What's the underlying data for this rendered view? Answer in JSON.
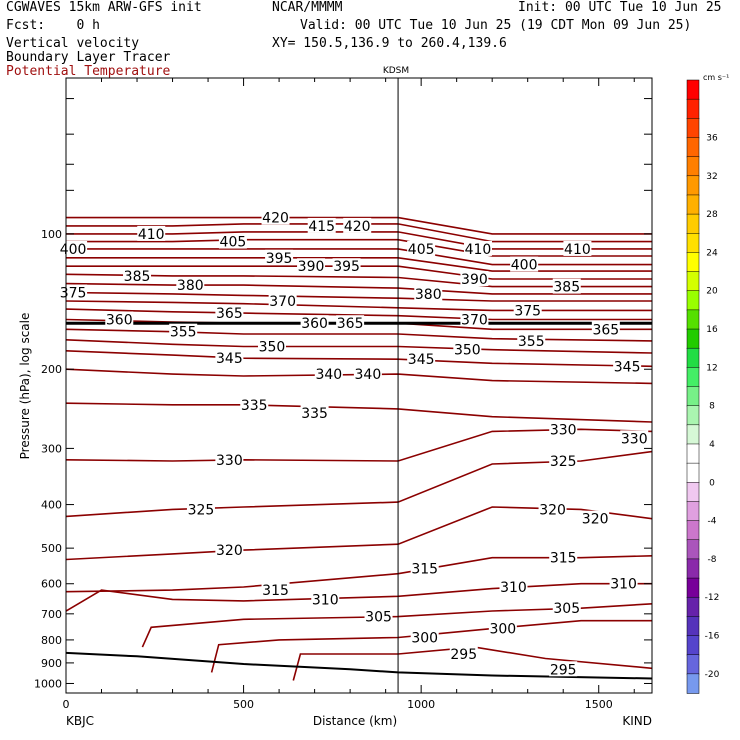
{
  "header": {
    "model": "CGWAVES 15km ARW-GFS init",
    "org": "NCAR/MMMM",
    "init": "Init: 00 UTC Tue 10 Jun 25",
    "fcst": "Fcst:    0 h",
    "valid": "Valid: 00 UTC Tue 10 Jun 25 (19 CDT Mon 09 Jun 25)",
    "field1": "Vertical velocity",
    "xy": "XY= 150.5,136.9 to 260.4,139.6",
    "field2": "Boundary Layer Tracer",
    "field3": "Potential Temperature"
  },
  "chart_data": {
    "type": "cross-section contour",
    "xlabel": "Distance (km)",
    "ylabel": "Pressure (hPa), log scale",
    "xlim": [
      0,
      1650
    ],
    "ylim": [
      1050,
      45
    ],
    "x_ticks": [
      0,
      500,
      1000,
      1500
    ],
    "y_ticks": [
      100,
      200,
      300,
      400,
      500,
      600,
      700,
      800,
      900,
      1000
    ],
    "left_station": "KBJC",
    "right_station": "KIND",
    "mid_station": "KDSM",
    "mid_station_x": 935,
    "colorbar": {
      "unit": "cm s⁻¹",
      "labels": [
        36,
        32,
        28,
        24,
        20,
        16,
        12,
        8,
        4,
        0,
        -4,
        -8,
        -12,
        -16,
        -20
      ],
      "colors": [
        "#ff0000",
        "#ff2200",
        "#ff4400",
        "#ff6600",
        "#ff7f00",
        "#ff9900",
        "#ffb000",
        "#ffcc00",
        "#ffe000",
        "#ffff00",
        "#d4ff00",
        "#99ff00",
        "#55e000",
        "#22cc00",
        "#22dd44",
        "#44ee66",
        "#77f088",
        "#aaf5b0",
        "#d6f8d6",
        "#ffffff",
        "#ffffff",
        "#f0c8f0",
        "#e0a0e0",
        "#cc77cc",
        "#aa55bb",
        "#8a2aaa",
        "#770099",
        "#6622aa",
        "#5533bb",
        "#5544cc",
        "#6666dd",
        "#7799ee"
      ]
    },
    "series": [
      {
        "theta": 420,
        "points": [
          [
            0,
            92
          ],
          [
            300,
            92
          ],
          [
            500,
            92
          ],
          [
            935,
            92
          ],
          [
            1200,
            100
          ],
          [
            1650,
            100
          ]
        ]
      },
      {
        "theta": 415,
        "points": [
          [
            0,
            96
          ],
          [
            300,
            96
          ],
          [
            500,
            95
          ],
          [
            935,
            95
          ],
          [
            1200,
            104
          ],
          [
            1650,
            104
          ]
        ]
      },
      {
        "theta": 410,
        "points": [
          [
            0,
            100
          ],
          [
            300,
            100
          ],
          [
            500,
            99
          ],
          [
            935,
            99
          ],
          [
            1200,
            108
          ],
          [
            1650,
            108
          ]
        ]
      },
      {
        "theta": 405,
        "points": [
          [
            0,
            104
          ],
          [
            300,
            104
          ],
          [
            500,
            103
          ],
          [
            935,
            103
          ],
          [
            1200,
            112
          ],
          [
            1650,
            112
          ]
        ]
      },
      {
        "theta": 400,
        "points": [
          [
            0,
            108
          ],
          [
            300,
            108
          ],
          [
            500,
            108
          ],
          [
            935,
            108
          ],
          [
            1200,
            117
          ],
          [
            1650,
            117
          ]
        ]
      },
      {
        "theta": 395,
        "points": [
          [
            0,
            113
          ],
          [
            300,
            113
          ],
          [
            500,
            113
          ],
          [
            935,
            113
          ],
          [
            1200,
            121
          ],
          [
            1650,
            121
          ]
        ]
      },
      {
        "theta": 390,
        "points": [
          [
            0,
            118
          ],
          [
            300,
            118
          ],
          [
            500,
            118
          ],
          [
            935,
            118
          ],
          [
            1200,
            126
          ],
          [
            1650,
            126
          ]
        ]
      },
      {
        "theta": 385,
        "points": [
          [
            0,
            123
          ],
          [
            300,
            124
          ],
          [
            500,
            124
          ],
          [
            935,
            125
          ],
          [
            1200,
            131
          ],
          [
            1650,
            131
          ]
        ]
      },
      {
        "theta": 380,
        "points": [
          [
            0,
            129
          ],
          [
            300,
            130
          ],
          [
            500,
            130
          ],
          [
            935,
            132
          ],
          [
            1200,
            136
          ],
          [
            1650,
            136
          ]
        ]
      },
      {
        "theta": 375,
        "points": [
          [
            0,
            135
          ],
          [
            300,
            136
          ],
          [
            500,
            137
          ],
          [
            935,
            139
          ],
          [
            1200,
            141
          ],
          [
            1650,
            141
          ]
        ]
      },
      {
        "theta": 370,
        "points": [
          [
            0,
            141
          ],
          [
            300,
            142
          ],
          [
            500,
            143
          ],
          [
            935,
            146
          ],
          [
            1200,
            148
          ],
          [
            1650,
            148
          ]
        ]
      },
      {
        "theta": 365,
        "points": [
          [
            0,
            147
          ],
          [
            300,
            149
          ],
          [
            500,
            150
          ],
          [
            935,
            152
          ],
          [
            1200,
            155
          ],
          [
            1650,
            155
          ]
        ]
      },
      {
        "theta": 360,
        "points": [
          [
            0,
            155
          ],
          [
            300,
            157
          ],
          [
            500,
            158
          ],
          [
            935,
            158
          ],
          [
            1200,
            163
          ],
          [
            1650,
            163
          ]
        ]
      },
      {
        "theta": 355,
        "points": [
          [
            0,
            163
          ],
          [
            300,
            165
          ],
          [
            500,
            167
          ],
          [
            935,
            167
          ],
          [
            1200,
            171
          ],
          [
            1650,
            173
          ]
        ]
      },
      {
        "theta": 350,
        "points": [
          [
            0,
            172
          ],
          [
            300,
            176
          ],
          [
            500,
            178
          ],
          [
            935,
            178
          ],
          [
            1200,
            181
          ],
          [
            1650,
            184
          ]
        ]
      },
      {
        "theta": 345,
        "points": [
          [
            0,
            182
          ],
          [
            300,
            186
          ],
          [
            500,
            189
          ],
          [
            935,
            190
          ],
          [
            1200,
            194
          ],
          [
            1650,
            197
          ]
        ]
      },
      {
        "theta": 340,
        "points": [
          [
            0,
            200
          ],
          [
            300,
            205
          ],
          [
            500,
            207
          ],
          [
            935,
            205
          ],
          [
            1200,
            212
          ],
          [
            1650,
            215
          ]
        ]
      },
      {
        "theta": 335,
        "points": [
          [
            0,
            238
          ],
          [
            300,
            240
          ],
          [
            500,
            240
          ],
          [
            935,
            245
          ],
          [
            1200,
            255
          ],
          [
            1650,
            262
          ]
        ]
      },
      {
        "theta": 330,
        "points": [
          [
            0,
            318
          ],
          [
            300,
            320
          ],
          [
            500,
            318
          ],
          [
            935,
            320
          ],
          [
            1200,
            275
          ],
          [
            1450,
            272
          ],
          [
            1650,
            275
          ]
        ]
      },
      {
        "theta": 325,
        "points": [
          [
            0,
            425
          ],
          [
            300,
            410
          ],
          [
            500,
            405
          ],
          [
            935,
            395
          ],
          [
            1200,
            325
          ],
          [
            1450,
            320
          ],
          [
            1650,
            305
          ]
        ]
      },
      {
        "theta": 320,
        "points": [
          [
            0,
            530
          ],
          [
            300,
            515
          ],
          [
            500,
            505
          ],
          [
            935,
            490
          ],
          [
            1200,
            405
          ],
          [
            1450,
            410
          ],
          [
            1650,
            430
          ]
        ]
      },
      {
        "theta": 315,
        "points": [
          [
            0,
            625
          ],
          [
            300,
            620
          ],
          [
            500,
            610
          ],
          [
            935,
            570
          ],
          [
            1200,
            525
          ],
          [
            1450,
            525
          ],
          [
            1650,
            520
          ]
        ]
      },
      {
        "theta": 310,
        "points": [
          [
            0,
            690
          ],
          [
            100,
            620
          ],
          [
            300,
            650
          ],
          [
            500,
            655
          ],
          [
            935,
            640
          ],
          [
            1200,
            615
          ],
          [
            1450,
            600
          ],
          [
            1650,
            600
          ]
        ]
      },
      {
        "theta": 305,
        "points": [
          [
            215,
            830
          ],
          [
            240,
            750
          ],
          [
            500,
            720
          ],
          [
            935,
            710
          ],
          [
            1200,
            690
          ],
          [
            1450,
            680
          ],
          [
            1650,
            665
          ]
        ]
      },
      {
        "theta": 300,
        "points": [
          [
            410,
            945
          ],
          [
            430,
            820
          ],
          [
            600,
            800
          ],
          [
            935,
            790
          ],
          [
            1200,
            755
          ],
          [
            1450,
            725
          ],
          [
            1650,
            725
          ]
        ]
      },
      {
        "theta": 295,
        "points": [
          [
            640,
            985
          ],
          [
            660,
            860
          ],
          [
            935,
            860
          ],
          [
            1150,
            830
          ],
          [
            1350,
            880
          ],
          [
            1650,
            925
          ]
        ]
      }
    ],
    "labels": [
      {
        "text": "420",
        "x": 590,
        "p": 92
      },
      {
        "text": "415",
        "x": 720,
        "p": 96
      },
      {
        "text": "420",
        "x": 820,
        "p": 96
      },
      {
        "text": "410",
        "x": 240,
        "p": 100
      },
      {
        "text": "405",
        "x": 470,
        "p": 104
      },
      {
        "text": "405",
        "x": 1000,
        "p": 108
      },
      {
        "text": "410",
        "x": 1160,
        "p": 108
      },
      {
        "text": "410",
        "x": 1440,
        "p": 108
      },
      {
        "text": "400",
        "x": 20,
        "p": 108
      },
      {
        "text": "400",
        "x": 1290,
        "p": 117
      },
      {
        "text": "395",
        "x": 600,
        "p": 113
      },
      {
        "text": "395",
        "x": 790,
        "p": 118
      },
      {
        "text": "390",
        "x": 690,
        "p": 118
      },
      {
        "text": "390",
        "x": 1150,
        "p": 126
      },
      {
        "text": "385",
        "x": 200,
        "p": 124
      },
      {
        "text": "385",
        "x": 1410,
        "p": 131
      },
      {
        "text": "380",
        "x": 350,
        "p": 130
      },
      {
        "text": "380",
        "x": 1020,
        "p": 136
      },
      {
        "text": "375",
        "x": 20,
        "p": 135
      },
      {
        "text": "375",
        "x": 1300,
        "p": 148
      },
      {
        "text": "370",
        "x": 610,
        "p": 141
      },
      {
        "text": "370",
        "x": 1150,
        "p": 155
      },
      {
        "text": "365",
        "x": 460,
        "p": 150
      },
      {
        "text": "365",
        "x": 1520,
        "p": 163
      },
      {
        "text": "360",
        "x": 150,
        "p": 155
      },
      {
        "text": "360",
        "x": 700,
        "p": 158
      },
      {
        "text": "365",
        "x": 800,
        "p": 158
      },
      {
        "text": "355",
        "x": 330,
        "p": 165
      },
      {
        "text": "355",
        "x": 1310,
        "p": 173
      },
      {
        "text": "350",
        "x": 580,
        "p": 178
      },
      {
        "text": "350",
        "x": 1130,
        "p": 181
      },
      {
        "text": "345",
        "x": 460,
        "p": 189
      },
      {
        "text": "345",
        "x": 1000,
        "p": 190
      },
      {
        "text": "345",
        "x": 1580,
        "p": 197
      },
      {
        "text": "340",
        "x": 740,
        "p": 205
      },
      {
        "text": "340",
        "x": 850,
        "p": 205
      },
      {
        "text": "335",
        "x": 530,
        "p": 240
      },
      {
        "text": "335",
        "x": 700,
        "p": 250
      },
      {
        "text": "330",
        "x": 460,
        "p": 318
      },
      {
        "text": "330",
        "x": 1400,
        "p": 272
      },
      {
        "text": "330",
        "x": 1600,
        "p": 285
      },
      {
        "text": "325",
        "x": 380,
        "p": 410
      },
      {
        "text": "325",
        "x": 1400,
        "p": 320
      },
      {
        "text": "320",
        "x": 460,
        "p": 505
      },
      {
        "text": "320",
        "x": 1370,
        "p": 410
      },
      {
        "text": "320",
        "x": 1490,
        "p": 430
      },
      {
        "text": "315",
        "x": 590,
        "p": 620
      },
      {
        "text": "315",
        "x": 1010,
        "p": 555
      },
      {
        "text": "315",
        "x": 1400,
        "p": 525
      },
      {
        "text": "310",
        "x": 730,
        "p": 650
      },
      {
        "text": "310",
        "x": 1260,
        "p": 610
      },
      {
        "text": "310",
        "x": 1570,
        "p": 600
      },
      {
        "text": "305",
        "x": 880,
        "p": 710
      },
      {
        "text": "305",
        "x": 1410,
        "p": 680
      },
      {
        "text": "300",
        "x": 1010,
        "p": 790
      },
      {
        "text": "300",
        "x": 1230,
        "p": 755
      },
      {
        "text": "295",
        "x": 1120,
        "p": 860
      },
      {
        "text": "295",
        "x": 1400,
        "p": 930
      }
    ]
  }
}
